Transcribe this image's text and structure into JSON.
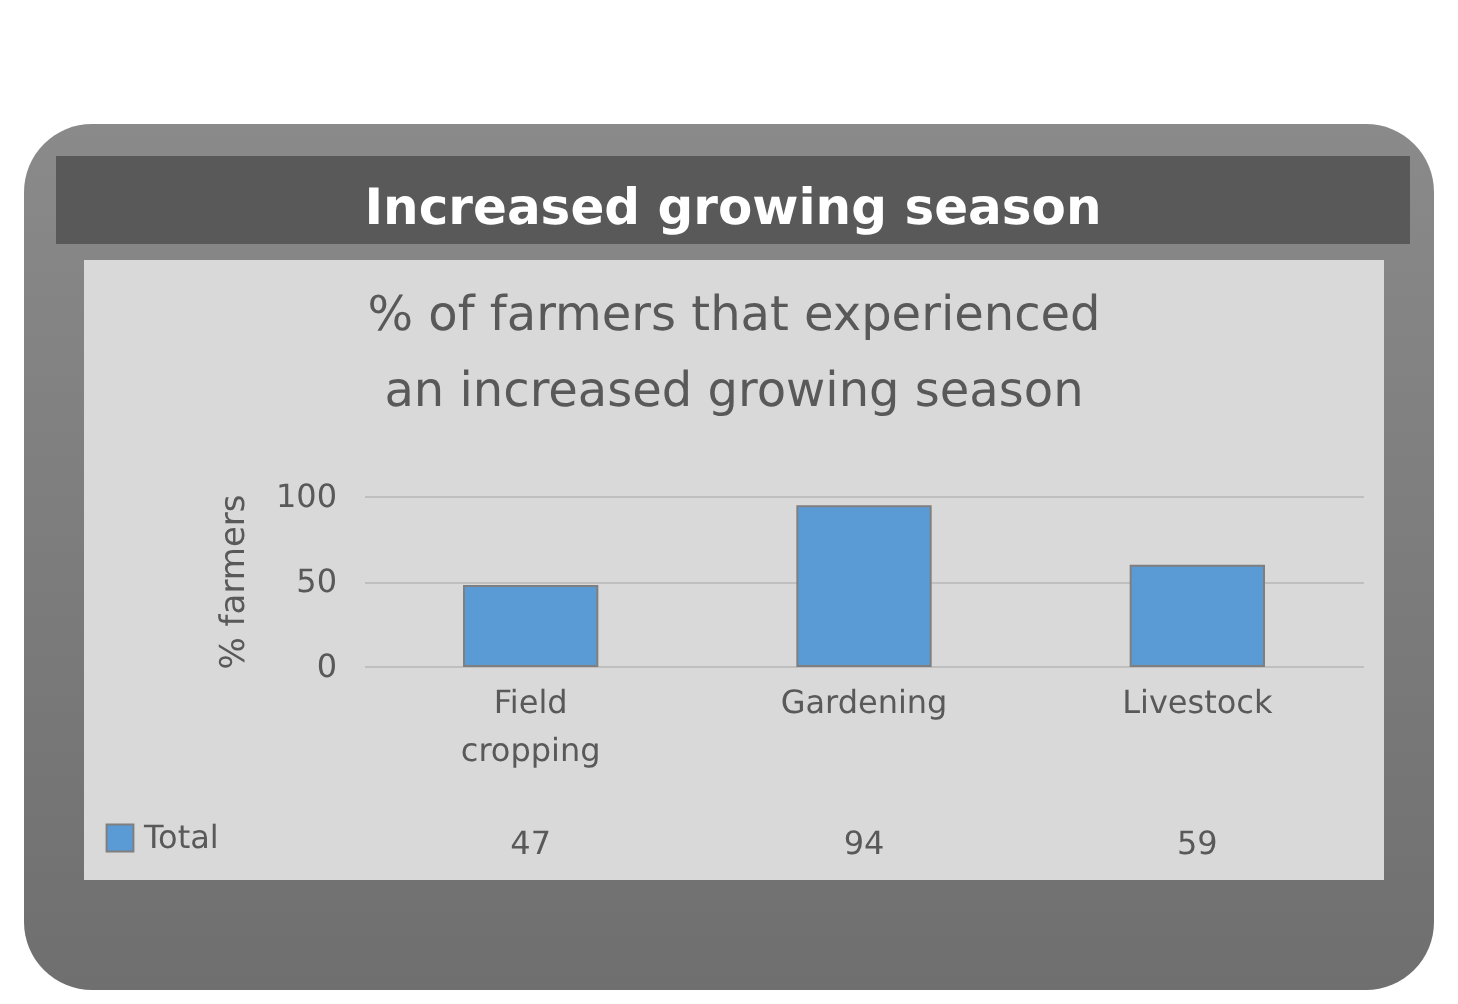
{
  "chart_data": {
    "type": "bar",
    "title": "Increased growing season",
    "subtitle": "% of farmers that experienced an increased growing season",
    "ylabel": "% farmers",
    "categories": [
      "Field cropping",
      "Gardening",
      "Livestock"
    ],
    "series": [
      {
        "name": "Total",
        "color": "#5b9bd5",
        "values": [
          47,
          94,
          59
        ]
      }
    ],
    "ylim": [
      0,
      100
    ],
    "yticks": [
      0,
      50,
      100
    ],
    "grid": "y",
    "legend": "bottom left",
    "data_labels": true
  }
}
